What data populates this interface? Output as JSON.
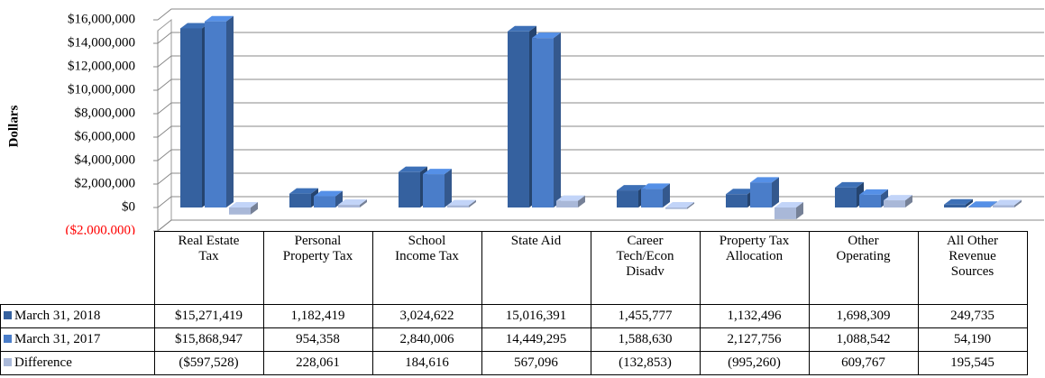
{
  "chart_data": {
    "type": "bar3d",
    "y_label": "Dollars",
    "categories": [
      "Real Estate Tax",
      "Personal Property Tax",
      "School Income Tax",
      "State Aid",
      "Career Tech/Econ Disadv",
      "Property Tax Allocation",
      "Other Operating",
      "All Other Revenue Sources"
    ],
    "series": [
      {
        "name": "March 31, 2018",
        "color": "#35619f",
        "values": [
          15271419,
          1182419,
          3024622,
          15016391,
          1455777,
          1132496,
          1698309,
          249735
        ],
        "value_labels": [
          "$15,271,419",
          "1,182,419",
          "3,024,622",
          "15,016,391",
          "1,455,777",
          "1,132,496",
          "1,698,309",
          "249,735"
        ]
      },
      {
        "name": "March 31, 2017",
        "color": "#4a7dc9",
        "values": [
          15868947,
          954358,
          2840006,
          14449295,
          1588630,
          2127756,
          1088542,
          54190
        ],
        "value_labels": [
          "$15,868,947",
          "954,358",
          "2,840,006",
          "14,449,295",
          "1,588,630",
          "2,127,756",
          "1,088,542",
          "54,190"
        ]
      },
      {
        "name": "Difference",
        "color": "#a9b8d8",
        "values": [
          -597528,
          228061,
          184616,
          567096,
          -132853,
          -995260,
          609767,
          195545
        ],
        "value_labels": [
          "($597,528)",
          "228,061",
          "184,616",
          "567,096",
          "(132,853)",
          "(995,260)",
          "609,767",
          "195,545"
        ]
      }
    ],
    "ylim": [
      -2000000,
      16000000
    ],
    "yticks": [
      {
        "value": -2000000,
        "label": "($2,000,000)"
      },
      {
        "value": 0,
        "label": "$0"
      },
      {
        "value": 2000000,
        "label": "$2,000,000"
      },
      {
        "value": 4000000,
        "label": "$4,000,000"
      },
      {
        "value": 6000000,
        "label": "$6,000,000"
      },
      {
        "value": 8000000,
        "label": "$8,000,000"
      },
      {
        "value": 10000000,
        "label": "$10,000,000"
      },
      {
        "value": 12000000,
        "label": "$12,000,000"
      },
      {
        "value": 14000000,
        "label": "$14,000,000"
      },
      {
        "value": 16000000,
        "label": "$16,000,000"
      }
    ],
    "negative_tick_color": "#ff0000",
    "grid": true
  }
}
